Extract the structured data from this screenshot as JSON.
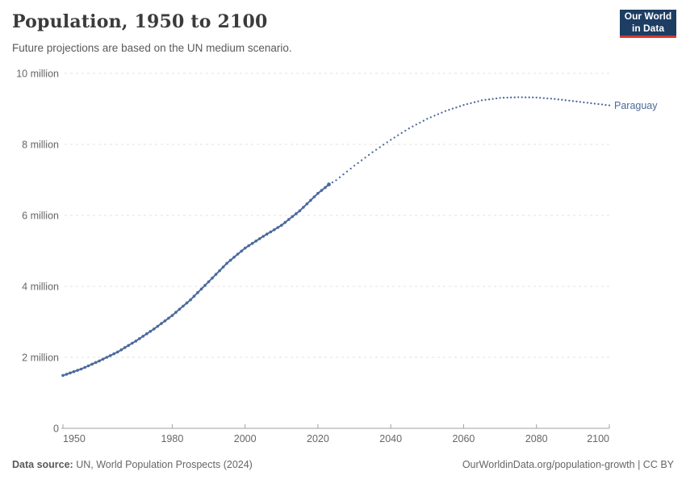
{
  "header": {
    "title": "Population, 1950 to 2100",
    "subtitle": "Future projections are based on the UN medium scenario.",
    "logo_line1": "Our World",
    "logo_line2": "in Data"
  },
  "footer": {
    "source_label": "Data source:",
    "source_text": "UN, World Population Prospects (2024)",
    "rights": "OurWorldinData.org/population-growth | CC BY"
  },
  "colors": {
    "series": "#4c6a9c",
    "entity_label": "#4c6a9c",
    "gridline": "#e2e2e2",
    "axis_line": "#a0a0a0",
    "tick_text": "#666666",
    "logo_bg": "#1d3d63",
    "logo_bar": "#d73831"
  },
  "chart_data": {
    "type": "line",
    "title": "Population, 1950 to 2100",
    "subtitle": "Future projections are based on the UN medium scenario.",
    "entity": "Paraguay",
    "unit": "million people",
    "xlim": [
      1950,
      2100
    ],
    "ylim": [
      0,
      10
    ],
    "grid": true,
    "legend_position": "end-of-line-label",
    "x_ticks": [
      1950,
      1980,
      2000,
      2020,
      2040,
      2060,
      2080,
      2100
    ],
    "y_ticks": [
      {
        "value": 0,
        "label": "0"
      },
      {
        "value": 2,
        "label": "2 million"
      },
      {
        "value": 4,
        "label": "4 million"
      },
      {
        "value": 6,
        "label": "6 million"
      },
      {
        "value": 8,
        "label": "8 million"
      },
      {
        "value": 10,
        "label": "10 million"
      }
    ],
    "series": [
      {
        "name": "Paraguay — historical estimates",
        "style": "solid-with-markers",
        "points": [
          [
            1950,
            1.49
          ],
          [
            1955,
            1.67
          ],
          [
            1960,
            1.9
          ],
          [
            1965,
            2.15
          ],
          [
            1970,
            2.46
          ],
          [
            1975,
            2.8
          ],
          [
            1980,
            3.18
          ],
          [
            1985,
            3.62
          ],
          [
            1990,
            4.13
          ],
          [
            1995,
            4.65
          ],
          [
            2000,
            5.08
          ],
          [
            2005,
            5.41
          ],
          [
            2010,
            5.72
          ],
          [
            2015,
            6.13
          ],
          [
            2020,
            6.62
          ],
          [
            2023,
            6.87
          ]
        ]
      },
      {
        "name": "Paraguay — UN medium projection",
        "style": "dotted",
        "points": [
          [
            2023,
            6.87
          ],
          [
            2025,
            6.99
          ],
          [
            2030,
            7.4
          ],
          [
            2035,
            7.78
          ],
          [
            2040,
            8.13
          ],
          [
            2045,
            8.45
          ],
          [
            2050,
            8.72
          ],
          [
            2055,
            8.94
          ],
          [
            2060,
            9.11
          ],
          [
            2065,
            9.24
          ],
          [
            2070,
            9.31
          ],
          [
            2075,
            9.33
          ],
          [
            2080,
            9.32
          ],
          [
            2085,
            9.28
          ],
          [
            2090,
            9.22
          ],
          [
            2095,
            9.16
          ],
          [
            2100,
            9.1
          ]
        ]
      }
    ]
  }
}
